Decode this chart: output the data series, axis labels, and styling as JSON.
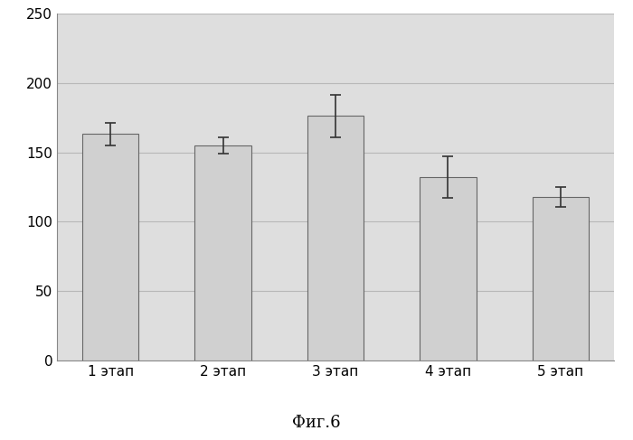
{
  "categories": [
    "1 этап",
    "2 этап",
    "3 этап",
    "4 этап",
    "5 этап"
  ],
  "values": [
    163,
    155,
    176,
    132,
    118
  ],
  "errors": [
    8,
    6,
    15,
    15,
    7
  ],
  "bar_color": "#d0d0d0",
  "bar_edge_color": "#666666",
  "ylim": [
    0,
    250
  ],
  "yticks": [
    0,
    50,
    100,
    150,
    200,
    250
  ],
  "plot_bg_color": "#dedede",
  "fig_bg_color": "#ffffff",
  "caption": "Фиг.6",
  "caption_fontsize": 13,
  "tick_fontsize": 11,
  "xtick_fontsize": 11,
  "bar_width": 0.5,
  "grid_color": "#b8b8b8",
  "grid_linewidth": 0.8,
  "error_capsize": 4,
  "error_linewidth": 1.2,
  "error_color": "#333333",
  "spine_color": "#888888"
}
